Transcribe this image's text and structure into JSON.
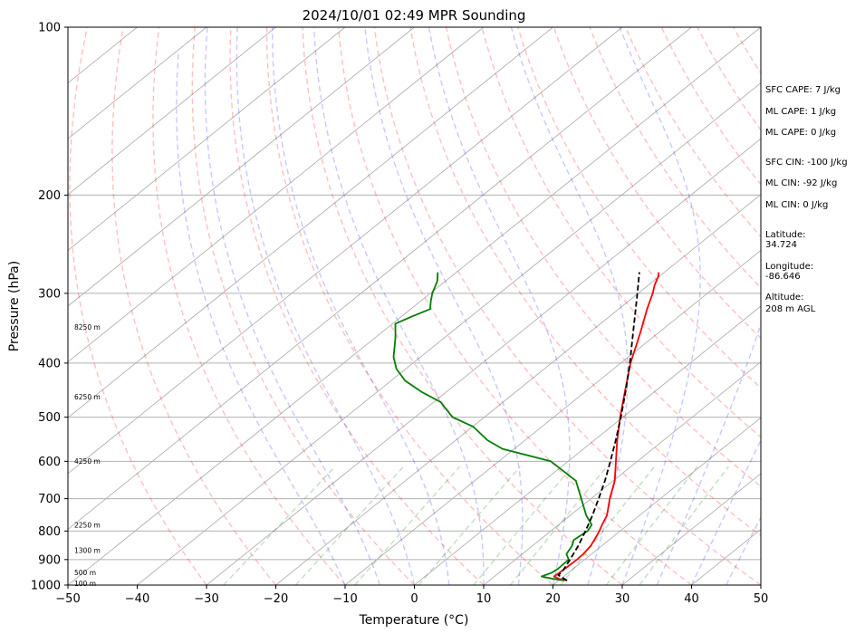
{
  "chart_data": {
    "type": "line",
    "title": "2024/10/01 02:49 MPR Sounding",
    "xlabel": "Temperature (°C)",
    "ylabel": "Pressure (hPa)",
    "xlim": [
      -50,
      50
    ],
    "ylim": [
      1000,
      100
    ],
    "y_scale": "log",
    "x_ticks": [
      -50,
      -40,
      -30,
      -20,
      -10,
      0,
      10,
      20,
      30,
      40,
      50
    ],
    "x_tick_labels": [
      "−50",
      "−40",
      "−30",
      "−20",
      "−10",
      "0",
      "10",
      "20",
      "30",
      "40",
      "50"
    ],
    "y_ticks": [
      100,
      200,
      300,
      400,
      500,
      600,
      700,
      800,
      900,
      1000
    ],
    "y_tick_labels": [
      "100",
      "200",
      "300",
      "400",
      "500",
      "600",
      "700",
      "800",
      "900",
      "1000"
    ],
    "grid": true,
    "skewed_isotherms": true,
    "series": [
      {
        "role": "temperature",
        "color": "#ff0000",
        "points": [
          [
            981,
            21.2
          ],
          [
            975,
            19.8
          ],
          [
            965,
            18.6
          ],
          [
            950,
            18.7
          ],
          [
            930,
            18.8
          ],
          [
            900,
            18.9
          ],
          [
            880,
            18.8
          ],
          [
            850,
            18.4
          ],
          [
            820,
            17.6
          ],
          [
            800,
            17.0
          ],
          [
            780,
            16.3
          ],
          [
            750,
            15.3
          ],
          [
            700,
            12.7
          ],
          [
            650,
            10.2
          ],
          [
            600,
            6.9
          ],
          [
            550,
            3.3
          ],
          [
            500,
            -0.4
          ],
          [
            450,
            -4.3
          ],
          [
            400,
            -8.6
          ],
          [
            370,
            -11.1
          ],
          [
            350,
            -12.9
          ],
          [
            320,
            -15.9
          ],
          [
            300,
            -17.9
          ],
          [
            290,
            -19.1
          ],
          [
            280,
            -20.1
          ],
          [
            275,
            -20.8
          ]
        ]
      },
      {
        "role": "dewpoint",
        "color": "#008000",
        "points": [
          [
            981,
            20.8
          ],
          [
            975,
            19.0
          ],
          [
            965,
            16.8
          ],
          [
            950,
            17.6
          ],
          [
            935,
            17.8
          ],
          [
            900,
            17.7
          ],
          [
            880,
            16.4
          ],
          [
            850,
            15.7
          ],
          [
            830,
            14.9
          ],
          [
            800,
            15.3
          ],
          [
            780,
            14.8
          ],
          [
            750,
            12.3
          ],
          [
            700,
            8.6
          ],
          [
            650,
            4.6
          ],
          [
            600,
            -2.5
          ],
          [
            570,
            -11.7
          ],
          [
            550,
            -15.4
          ],
          [
            520,
            -19.9
          ],
          [
            500,
            -24.6
          ],
          [
            470,
            -29.0
          ],
          [
            450,
            -33.7
          ],
          [
            430,
            -38.0
          ],
          [
            410,
            -41.3
          ],
          [
            390,
            -43.9
          ],
          [
            360,
            -47.1
          ],
          [
            340,
            -49.6
          ],
          [
            330,
            -48.5
          ],
          [
            320,
            -47.2
          ],
          [
            310,
            -48.5
          ],
          [
            300,
            -49.7
          ],
          [
            285,
            -51.2
          ],
          [
            275,
            -52.7
          ]
        ]
      },
      {
        "role": "parcel",
        "color": "#000000",
        "dashed": true,
        "points": [
          [
            981,
            21.2
          ],
          [
            960,
            19.0
          ],
          [
            940,
            18.8
          ],
          [
            900,
            17.9
          ],
          [
            850,
            16.6
          ],
          [
            800,
            15.0
          ],
          [
            750,
            13.2
          ],
          [
            700,
            11.1
          ],
          [
            650,
            8.8
          ],
          [
            600,
            6.1
          ],
          [
            550,
            3.1
          ],
          [
            500,
            -0.3
          ],
          [
            450,
            -4.2
          ],
          [
            400,
            -8.7
          ],
          [
            350,
            -14.0
          ],
          [
            300,
            -20.1
          ],
          [
            275,
            -23.6
          ]
        ]
      }
    ],
    "height_labels": [
      {
        "text": "100 m",
        "p": 995
      },
      {
        "text": "500 m",
        "p": 950
      },
      {
        "text": "1300 m",
        "p": 868
      },
      {
        "text": "2250 m",
        "p": 782
      },
      {
        "text": "4250 m",
        "p": 600
      },
      {
        "text": "6250 m",
        "p": 460
      },
      {
        "text": "8250 m",
        "p": 345
      }
    ],
    "annotations": [
      "SFC CAPE: 7 J/kg",
      "ML CAPE: 1 J/kg",
      "ML CAPE: 0 J/kg",
      "SFC CIN: -100 J/kg",
      "ML CIN: -92 J/kg",
      "ML CIN: 0 J/kg",
      "Latitude:",
      "34.724",
      "Longitude:",
      "-86.646",
      "Altitude:",
      "208 m AGL"
    ]
  }
}
